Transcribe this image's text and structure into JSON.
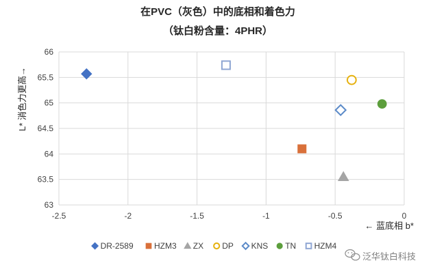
{
  "chart_data": {
    "type": "scatter",
    "title": "在PVC（灰色）中的底相和着色力",
    "subtitle": "（钛白粉含量：4PHR）",
    "xlabel": "← 蓝底相 b*",
    "ylabel": "L* 消色力更高→",
    "xlim": [
      -2.5,
      0
    ],
    "ylim": [
      63,
      66
    ],
    "x_ticks": [
      "-2.5",
      "-2",
      "-1.5",
      "-1",
      "-0.5",
      "0"
    ],
    "y_ticks": [
      "63",
      "63.5",
      "64",
      "64.5",
      "65",
      "65.5",
      "66"
    ],
    "grid": true,
    "legend_position": "bottom",
    "series": [
      {
        "name": "DR-2589",
        "x": -2.3,
        "y": 65.57,
        "color": "#4472c4",
        "marker": "diamond-filled"
      },
      {
        "name": "HZM3",
        "x": -0.74,
        "y": 64.1,
        "color": "#d9703a",
        "marker": "square-filled"
      },
      {
        "name": "ZX",
        "x": -0.44,
        "y": 63.55,
        "color": "#a5a5a5",
        "marker": "triangle-filled"
      },
      {
        "name": "DP",
        "x": -0.38,
        "y": 65.45,
        "color": "#e6b10e",
        "marker": "circle-open"
      },
      {
        "name": "KNS",
        "x": -0.46,
        "y": 64.86,
        "color": "#5b8ac8",
        "marker": "diamond-open"
      },
      {
        "name": "TN",
        "x": -0.16,
        "y": 64.98,
        "color": "#5c9e3c",
        "marker": "circle-filled"
      },
      {
        "name": "HZM4",
        "x": -1.29,
        "y": 65.74,
        "color": "#8fa6d3",
        "marker": "square-open"
      }
    ]
  },
  "watermark": {
    "text": "泛华钛白科技",
    "icon": "wechat-icon"
  }
}
